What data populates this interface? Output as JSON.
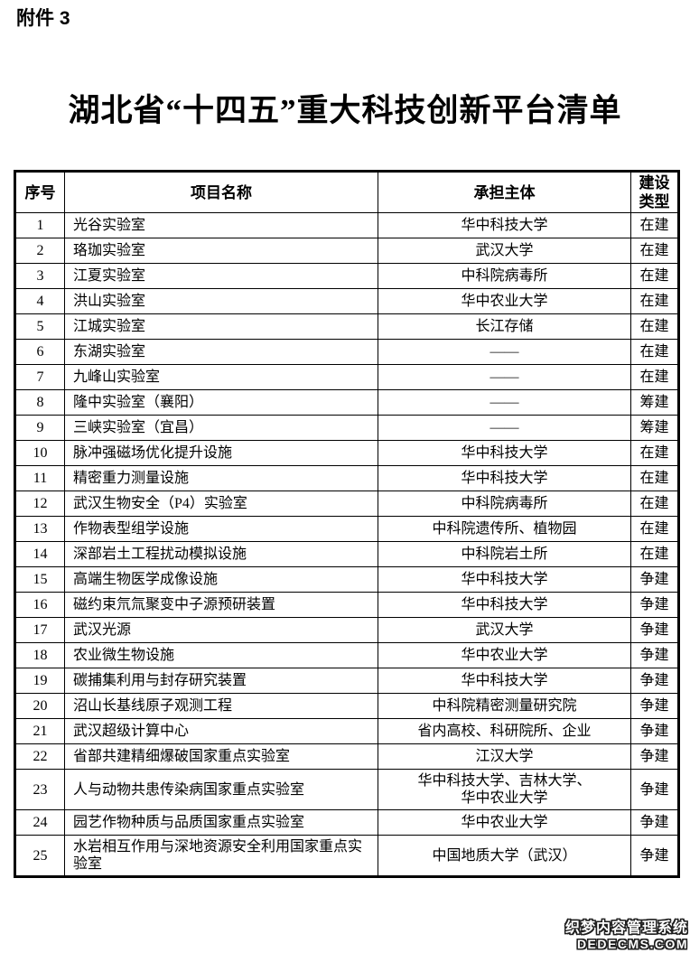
{
  "page": {
    "attachment_label": "附件 3",
    "title": "湖北省“十四五”重大科技创新平台清单"
  },
  "table": {
    "headers": {
      "no": "序号",
      "name": "项目名称",
      "entity": "承担主体",
      "type": "建设\n类型"
    },
    "rows": [
      {
        "no": "1",
        "name": "光谷实验室",
        "entity": "华中科技大学",
        "type": "在建"
      },
      {
        "no": "2",
        "name": "珞珈实验室",
        "entity": "武汉大学",
        "type": "在建"
      },
      {
        "no": "3",
        "name": "江夏实验室",
        "entity": "中科院病毒所",
        "type": "在建"
      },
      {
        "no": "4",
        "name": "洪山实验室",
        "entity": "华中农业大学",
        "type": "在建"
      },
      {
        "no": "5",
        "name": "江城实验室",
        "entity": "长江存储",
        "type": "在建"
      },
      {
        "no": "6",
        "name": "东湖实验室",
        "entity": "——",
        "type": "在建"
      },
      {
        "no": "7",
        "name": "九峰山实验室",
        "entity": "——",
        "type": "在建"
      },
      {
        "no": "8",
        "name": "隆中实验室（襄阳）",
        "entity": "——",
        "type": "筹建"
      },
      {
        "no": "9",
        "name": "三峡实验室（宜昌）",
        "entity": "——",
        "type": "筹建"
      },
      {
        "no": "10",
        "name": "脉冲强磁场优化提升设施",
        "entity": "华中科技大学",
        "type": "在建"
      },
      {
        "no": "11",
        "name": "精密重力测量设施",
        "entity": "华中科技大学",
        "type": "在建"
      },
      {
        "no": "12",
        "name": "武汉生物安全（P4）实验室",
        "entity": "中科院病毒所",
        "type": "在建"
      },
      {
        "no": "13",
        "name": "作物表型组学设施",
        "entity": "中科院遗传所、植物园",
        "type": "在建"
      },
      {
        "no": "14",
        "name": "深部岩土工程扰动模拟设施",
        "entity": "中科院岩土所",
        "type": "在建"
      },
      {
        "no": "15",
        "name": "高端生物医学成像设施",
        "entity": "华中科技大学",
        "type": "争建"
      },
      {
        "no": "16",
        "name": "磁约束氘氚聚变中子源预研装置",
        "entity": "华中科技大学",
        "type": "争建"
      },
      {
        "no": "17",
        "name": "武汉光源",
        "entity": "武汉大学",
        "type": "争建"
      },
      {
        "no": "18",
        "name": "农业微生物设施",
        "entity": "华中农业大学",
        "type": "争建"
      },
      {
        "no": "19",
        "name": "碳捕集利用与封存研究装置",
        "entity": "华中科技大学",
        "type": "争建"
      },
      {
        "no": "20",
        "name": "沼山长基线原子观测工程",
        "entity": "中科院精密测量研究院",
        "type": "争建"
      },
      {
        "no": "21",
        "name": "武汉超级计算中心",
        "entity": "省内高校、科研院所、企业",
        "type": "争建"
      },
      {
        "no": "22",
        "name": "省部共建精细爆破国家重点实验室",
        "entity": "江汉大学",
        "type": "争建"
      },
      {
        "no": "23",
        "name": "人与动物共患传染病国家重点实验室",
        "entity": "华中科技大学、吉林大学、\n华中农业大学",
        "type": "争建"
      },
      {
        "no": "24",
        "name": "园艺作物种质与品质国家重点实验室",
        "entity": "华中农业大学",
        "type": "争建"
      },
      {
        "no": "25",
        "name": "水岩相互作用与深地资源安全利用国家重点实验室",
        "entity": "中国地质大学（武汉）",
        "type": "争建"
      }
    ]
  },
  "watermark": {
    "line1": "织梦内容管理系统",
    "line2": "DEDECMS.COM"
  }
}
